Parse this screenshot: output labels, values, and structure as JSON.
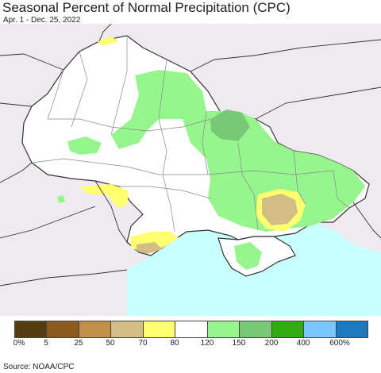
{
  "title": "Seasonal Percent of Normal Precipitation (CPC)",
  "subtitle": "Apr. 1 - Dec. 25, 2022",
  "source": "Source: NOAA/CPC",
  "legend": {
    "colors": [
      "#553d13",
      "#8c5a20",
      "#c19048",
      "#d2bd85",
      "#ffff70",
      "#ffffff",
      "#96f58c",
      "#78c878",
      "#32aa14",
      "#78c8ff",
      "#1e78be"
    ],
    "ticks": [
      "0%",
      "5",
      "25",
      "50",
      "70",
      "80",
      "120",
      "150",
      "200",
      "400",
      "600%"
    ]
  },
  "map_colors": {
    "land": "#ffffff",
    "outside": "#eeeaf0",
    "sea": "#c8ffff",
    "border": "#333333",
    "oblast_border": "#888888"
  }
}
